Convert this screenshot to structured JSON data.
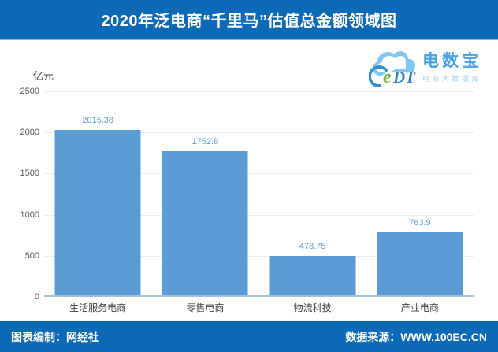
{
  "header": {
    "title": "2020年泛电商“千里马”估值总金额领域图"
  },
  "logo": {
    "cloud_e": "e",
    "cloud_dt": "DT",
    "name": "电数宝",
    "subtitle": "电商大数据库"
  },
  "chart_data": {
    "type": "bar",
    "title": "2020年泛电商“千里马”估值总金额领域图",
    "unit_label": "亿元",
    "categories": [
      "生活服务电商",
      "零售电商",
      "物流科技",
      "产业电商"
    ],
    "values": [
      2015.38,
      1752.8,
      478.75,
      763.9
    ],
    "value_labels": [
      "2015.38",
      "1752.8",
      "478.75",
      "763.9"
    ],
    "ylim": [
      0,
      2500
    ],
    "yticks": [
      0,
      500,
      1000,
      1500,
      2000,
      2500
    ],
    "grid": true,
    "legend": false,
    "bar_color": "#5b9bd5",
    "value_label_color": "#5b9bd5"
  },
  "footer": {
    "left": "图表编制：网经社",
    "right": "数据来源：WWW.100EC.CN"
  }
}
